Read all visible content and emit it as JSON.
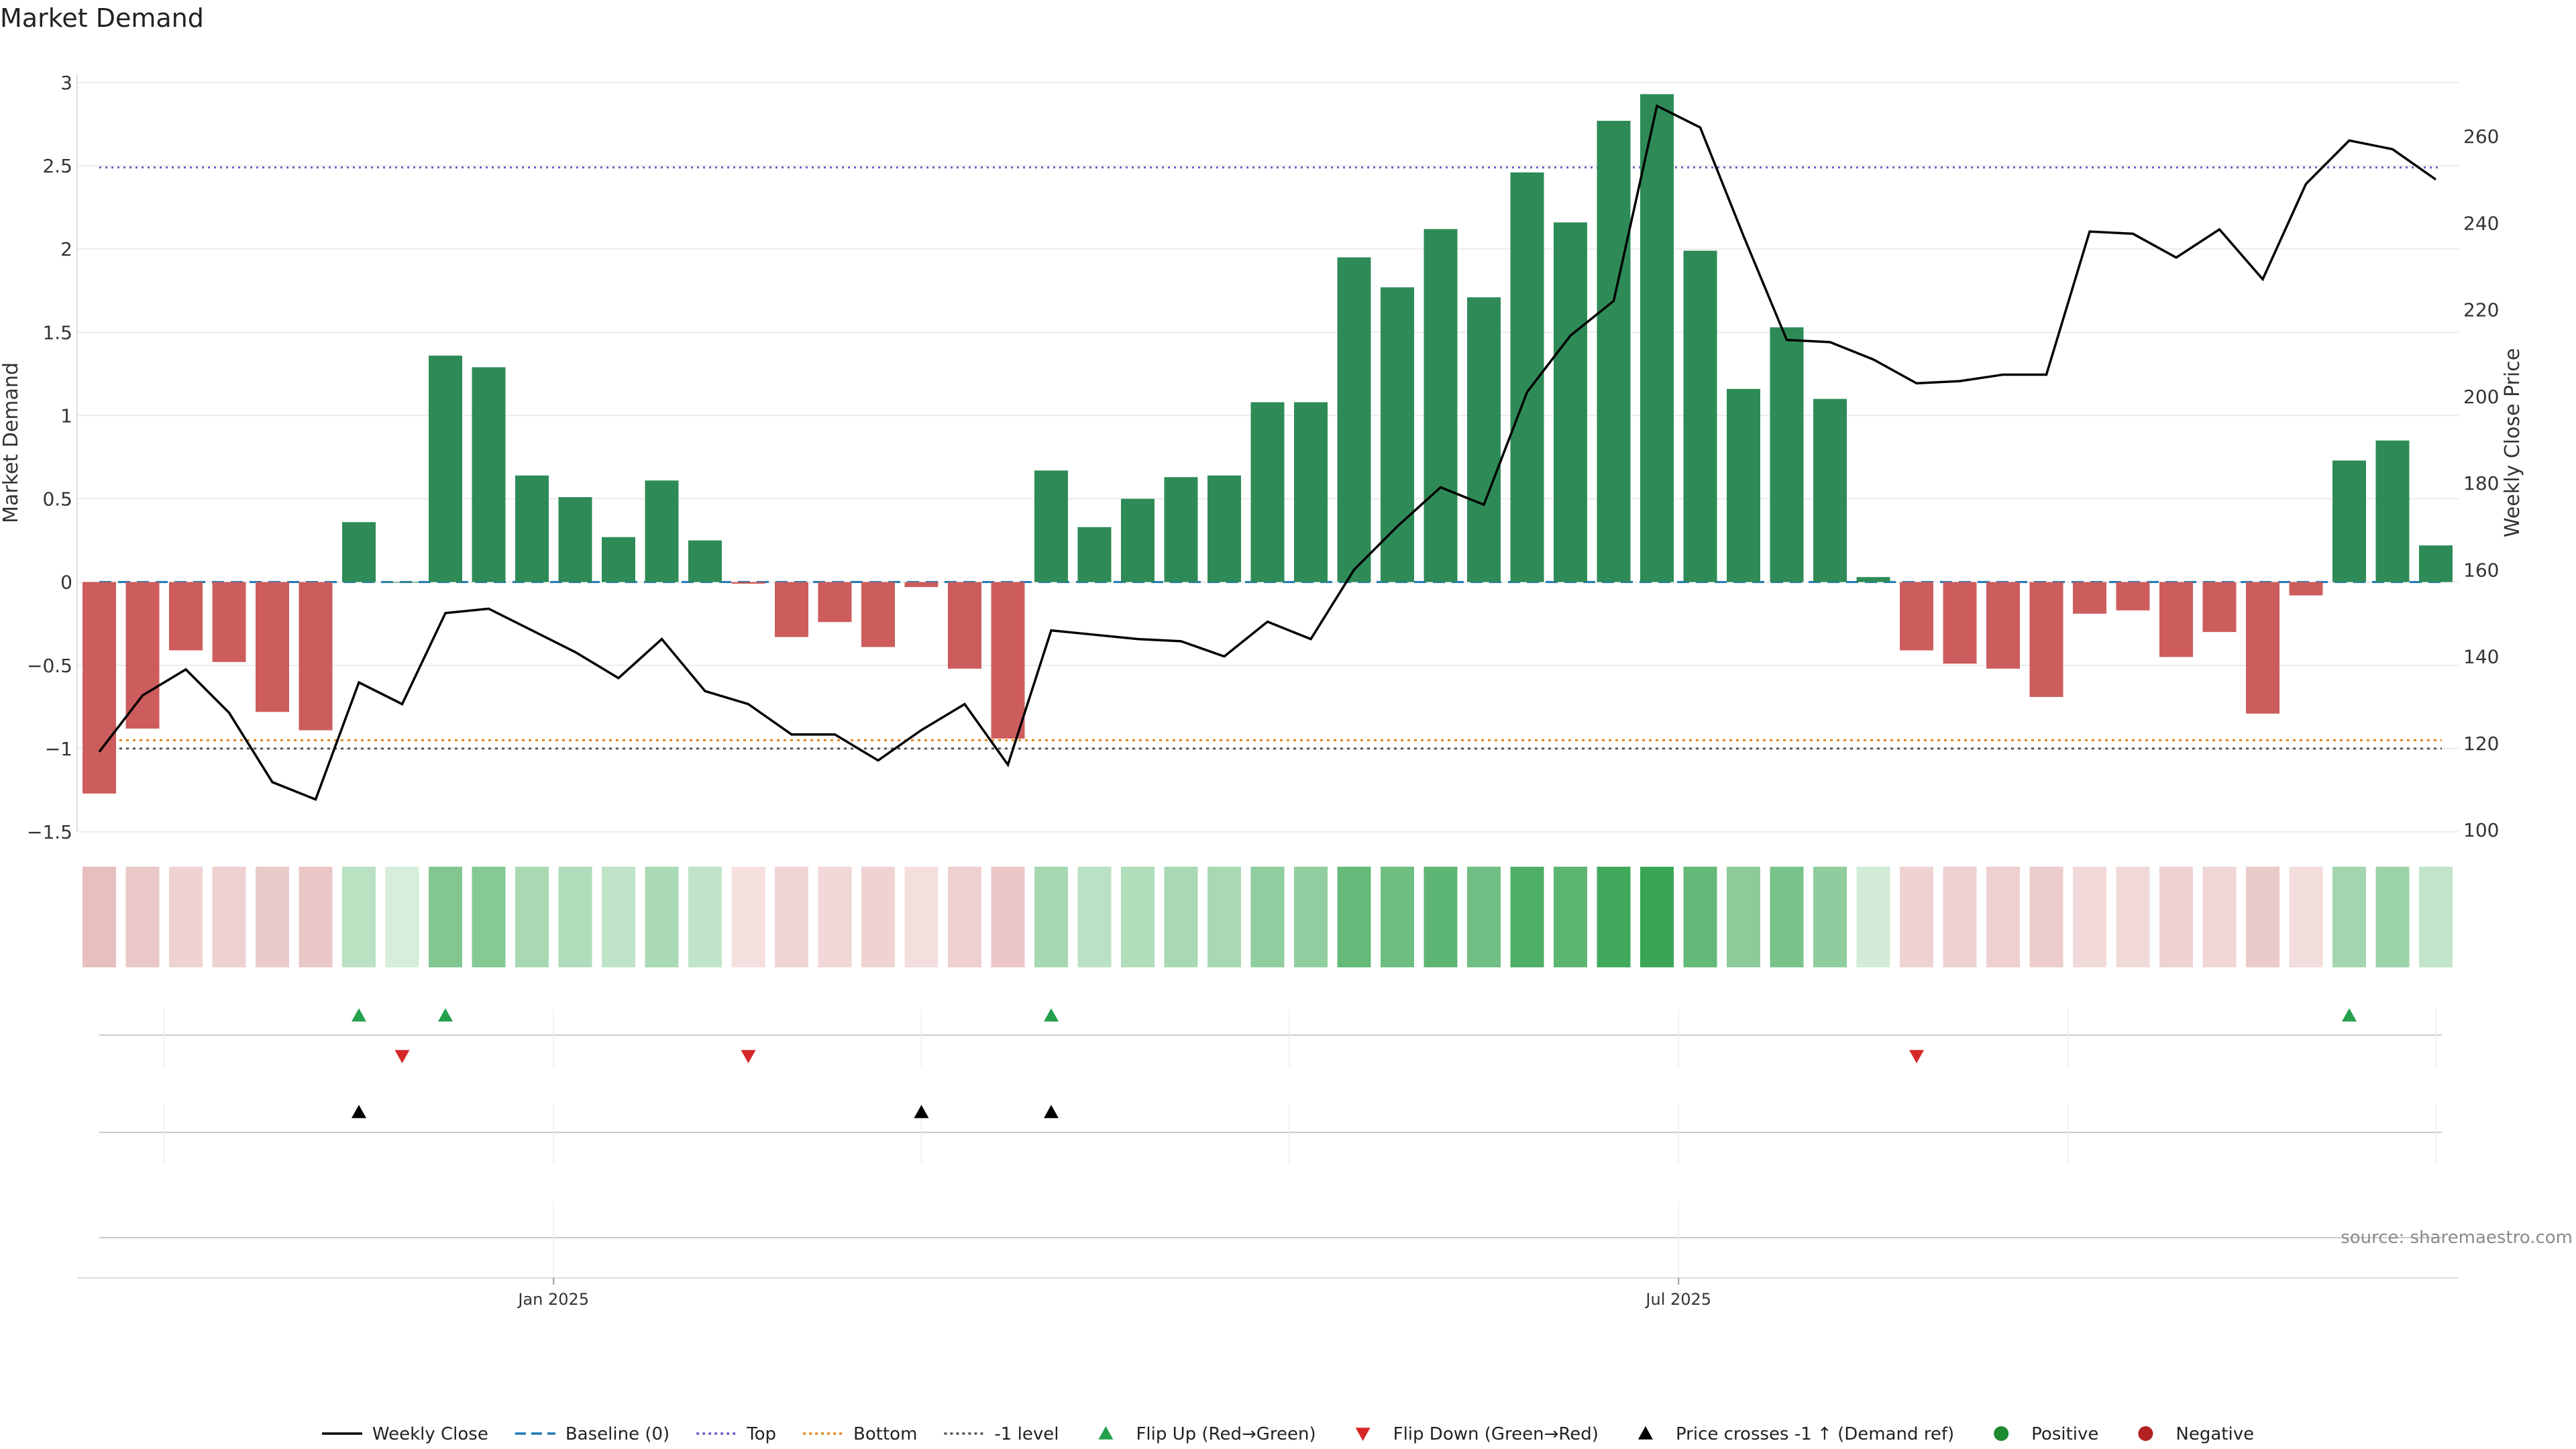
{
  "chart_data": {
    "type": "bar",
    "title": "Market Demand",
    "ylabel": "Market Demand",
    "y2label": "Weekly Close Price",
    "source": "source: sharemaestro.com",
    "ylim": [
      -1.5,
      3.0
    ],
    "y2lim": [
      100,
      270
    ],
    "yticks": [
      "3",
      "2.5",
      "2",
      "1.5",
      "1",
      "0.5",
      "0",
      "−0.5",
      "−1",
      "−1.5"
    ],
    "ytick_values": [
      3,
      2.5,
      2,
      1.5,
      1,
      0.5,
      0,
      -0.5,
      -1,
      -1.5
    ],
    "y2ticks": [
      "260",
      "240",
      "220",
      "200",
      "180",
      "160",
      "140",
      "120",
      "100"
    ],
    "y2tick_values": [
      260,
      240,
      220,
      200,
      180,
      160,
      140,
      120,
      100
    ],
    "xticks": [
      {
        "label": "Jan 2025",
        "index": 10.5
      },
      {
        "label": "Jul 2025",
        "index": 36.5
      }
    ],
    "reference_lines": {
      "baseline": 0,
      "top": 2.49,
      "bottom": -0.95,
      "minus_one": -1
    },
    "demand": [
      -1.27,
      -0.88,
      -0.41,
      -0.48,
      -0.78,
      -0.89,
      0.36,
      0.0,
      1.36,
      1.29,
      0.64,
      0.51,
      0.27,
      0.61,
      0.25,
      -0.01,
      -0.33,
      -0.24,
      -0.39,
      -0.03,
      -0.52,
      -0.94,
      0.67,
      0.33,
      0.5,
      0.63,
      0.64,
      1.08,
      1.08,
      1.95,
      1.77,
      2.12,
      1.71,
      2.46,
      2.16,
      2.77,
      2.93,
      1.99,
      1.16,
      1.53,
      1.1,
      0.03,
      -0.41,
      -0.49,
      -0.52,
      -0.69,
      -0.19,
      -0.17,
      -0.45,
      -0.3,
      -0.79,
      -0.08,
      0.73,
      0.85,
      0.22
    ],
    "close": [
      118,
      131,
      137,
      127,
      111,
      107,
      134,
      129,
      150,
      151,
      146,
      141,
      135,
      144,
      132,
      129,
      122,
      122,
      116,
      123,
      129,
      115,
      146,
      145,
      144,
      143.5,
      140,
      148,
      144,
      160,
      170,
      179,
      175,
      201,
      214,
      222,
      267,
      262,
      237,
      213,
      212.5,
      208.5,
      203,
      203.5,
      205,
      205,
      238,
      237.5,
      232,
      238.5,
      227,
      249,
      259,
      257,
      250
    ],
    "heat_strip": "color intensity follows market demand value (green positive, red negative)",
    "flip_up_idx": [
      6,
      8,
      22,
      52
    ],
    "flip_down_idx": [
      7,
      15,
      42
    ],
    "price_cross_idx": [
      6,
      19,
      22
    ],
    "legend": [
      {
        "label": "Weekly Close",
        "kind": "line-solid",
        "color": "#000000"
      },
      {
        "label": "Baseline (0)",
        "kind": "line-dash",
        "color": "#1f77b4"
      },
      {
        "label": "Top",
        "kind": "line-dot",
        "color": "#6b5fc7"
      },
      {
        "label": "Bottom",
        "kind": "line-dot",
        "color": "#e08a1e"
      },
      {
        "label": "-1 level",
        "kind": "line-dot",
        "color": "#555555"
      },
      {
        "label": "Flip Up (Red→Green)",
        "kind": "tri-up",
        "color": "#22a04b"
      },
      {
        "label": "Flip Down (Green→Red)",
        "kind": "tri-down",
        "color": "#d62728"
      },
      {
        "label": "Price crosses -1 ↑ (Demand ref)",
        "kind": "tri-up",
        "color": "#000000"
      },
      {
        "label": "Positive",
        "kind": "circle",
        "color": "#1e8a32"
      },
      {
        "label": "Negative",
        "kind": "circle",
        "color": "#b22222"
      }
    ],
    "colors": {
      "positive_bar": "#2e8b57",
      "negative_bar": "#cd5c5c",
      "strip_pos": "#3aa655",
      "strip_neg": "#d9a0a0",
      "grid": "#e6e6e6",
      "axis_text": "#333333"
    }
  }
}
